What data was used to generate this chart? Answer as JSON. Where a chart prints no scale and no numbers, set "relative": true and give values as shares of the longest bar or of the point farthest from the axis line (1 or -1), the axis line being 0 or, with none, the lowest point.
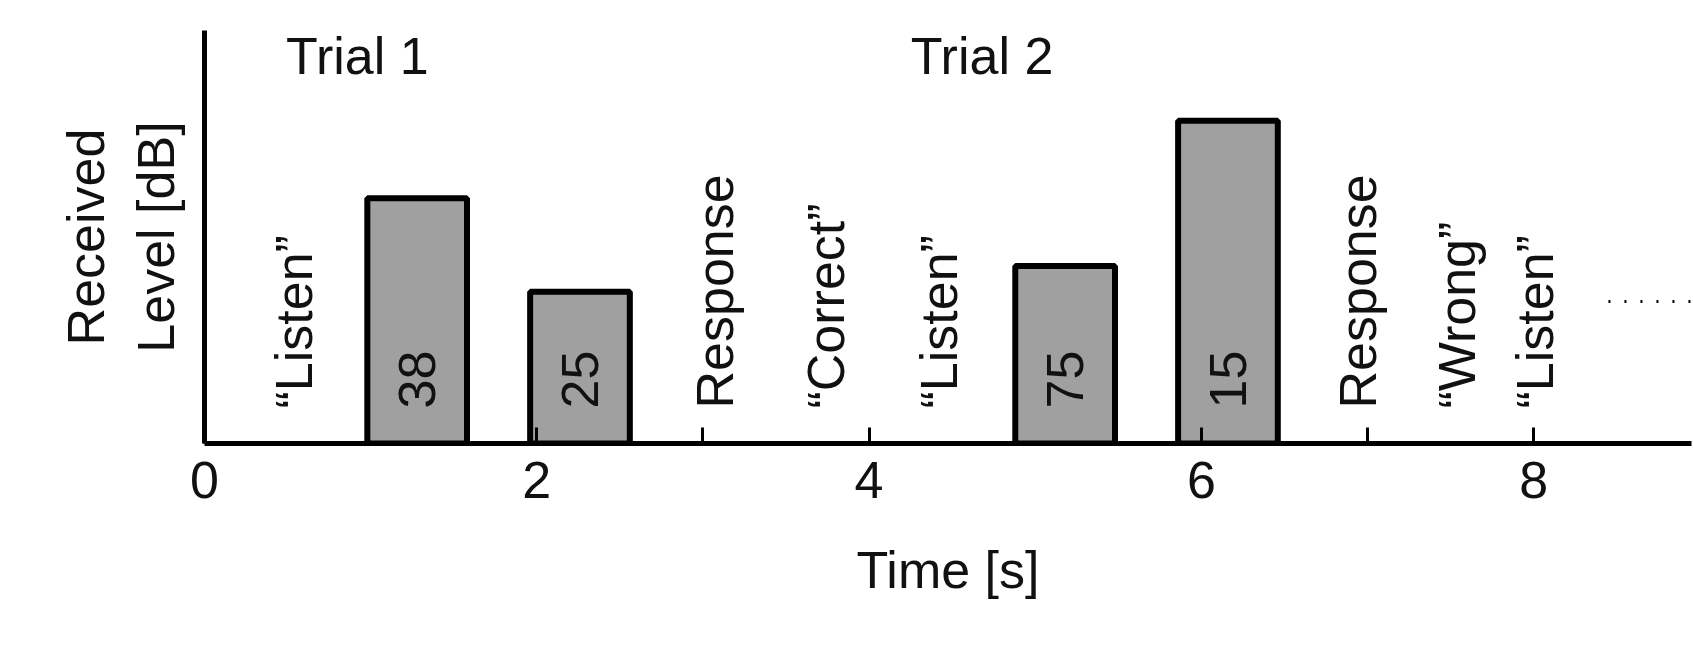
{
  "chart_data": {
    "type": "bar",
    "relative": true,
    "xlabel": "Time [s]",
    "ylabel": "Received Level [dB]",
    "xlim": [
      0,
      8.95
    ],
    "xticks": [
      0,
      2,
      4,
      6,
      8,
      {
        "value": 3,
        "label": null
      },
      {
        "value": 7,
        "label": null
      }
    ],
    "grid": false,
    "series": [
      {
        "color": "#a0a0a0",
        "x": [
          1.28,
          2.26,
          5.18,
          6.16
        ],
        "values": [
          0.76,
          0.47,
          0.55,
          1
        ]
      },
      {
        "type": "line",
        "color": "#000000",
        "line_style": "dotted",
        "x": [
          8.45,
          8.95
        ],
        "values": [
          0.44,
          0.44
        ]
      }
    ],
    "annotations": [
      "Trial 1",
      "Trial 2",
      "“Listen”",
      "Response",
      "“Correct”",
      "“Listen”",
      "Response",
      "“Wrong”",
      "“Listen”",
      "38",
      "25",
      "75",
      "15"
    ]
  }
}
